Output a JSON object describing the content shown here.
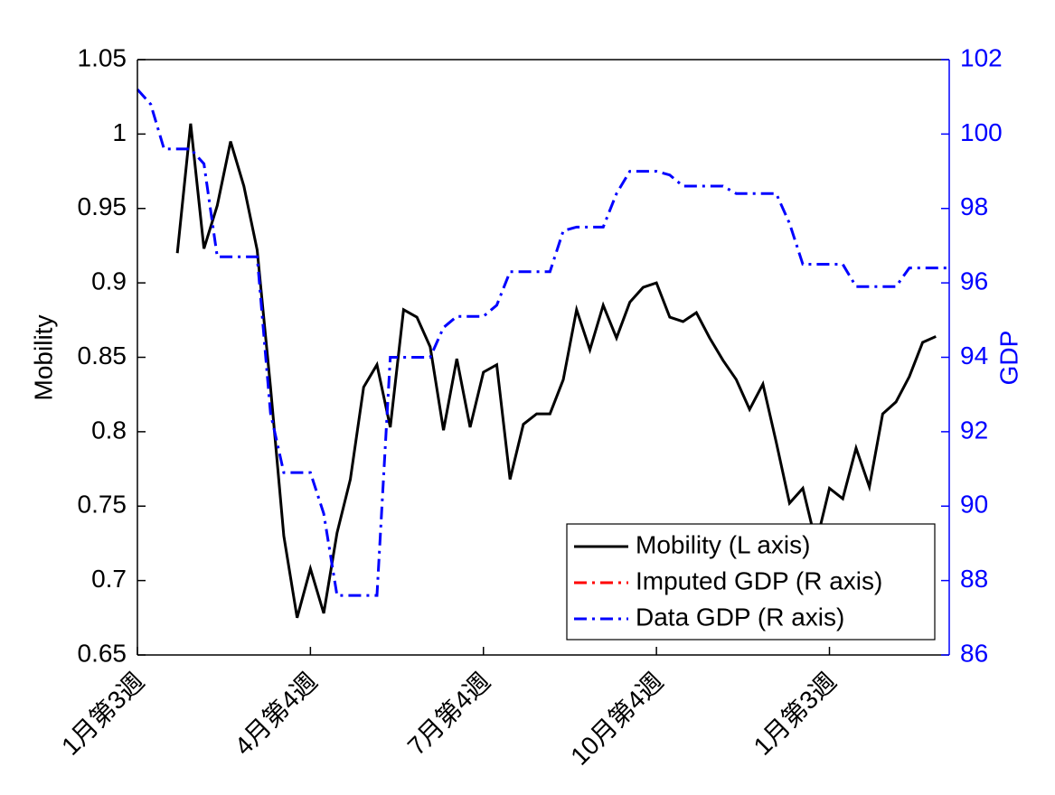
{
  "chart_data": {
    "type": "line",
    "ylabel": "Mobility",
    "y2label": "GDP",
    "x": [
      0,
      1,
      2,
      3,
      4,
      5,
      6,
      7,
      8,
      9,
      10,
      11,
      12,
      13,
      14,
      15,
      16,
      17,
      18,
      19,
      20,
      21,
      22,
      23,
      24,
      25,
      26,
      27,
      28,
      29,
      30,
      31,
      32,
      33,
      34,
      35,
      36,
      37,
      38,
      39,
      40,
      41,
      42,
      43,
      44,
      45,
      46,
      47,
      48,
      49,
      50,
      51,
      52,
      53,
      54,
      55,
      56,
      57,
      58,
      59,
      60,
      61
    ],
    "xlim": [
      0,
      61
    ],
    "xticks": [
      {
        "value": 0,
        "label": "1月第3週"
      },
      {
        "value": 13,
        "label": "4月第4週"
      },
      {
        "value": 26,
        "label": "7月第4週"
      },
      {
        "value": 39,
        "label": "10月第4週"
      },
      {
        "value": 52,
        "label": "1月第3週"
      }
    ],
    "ylim": [
      0.65,
      1.05
    ],
    "yticks": [
      0.65,
      0.7,
      0.75,
      0.8,
      0.85,
      0.9,
      0.95,
      1,
      1.05
    ],
    "y2lim": [
      86,
      102
    ],
    "y2ticks": [
      86,
      88,
      90,
      92,
      94,
      96,
      98,
      100,
      102
    ],
    "y2color": "#0000ff",
    "legend": "lower right",
    "series": [
      {
        "name": "Mobility (L axis)",
        "color": "#000000",
        "dash": "solid",
        "values": [
          null,
          null,
          null,
          0.92,
          1.007,
          0.923,
          0.952,
          0.995,
          0.965,
          0.922,
          0.83,
          0.73,
          0.675,
          0.708,
          0.678,
          0.732,
          0.768,
          0.83,
          0.845,
          0.803,
          0.882,
          0.877,
          0.857,
          0.801,
          0.849,
          0.803,
          0.84,
          0.845,
          0.768,
          0.805,
          0.812,
          0.812,
          0.835,
          0.882,
          0.855,
          0.885,
          0.863,
          0.887,
          0.897,
          0.9,
          0.877,
          0.874,
          0.88,
          0.863,
          0.848,
          0.835,
          0.815,
          0.832,
          0.793,
          0.752,
          0.762,
          0.725,
          0.762,
          0.755,
          0.789,
          0.763,
          0.812,
          0.82,
          0.837,
          0.86,
          0.864,
          null
        ]
      },
      {
        "name": "Imputed GDP (R axis)",
        "color": "#ff0000",
        "dash": "dashdot",
        "axis": "y2",
        "values": [
          null,
          null,
          null,
          null,
          null,
          null,
          null,
          null,
          null,
          null,
          null,
          null,
          null,
          null,
          null,
          null,
          null,
          null,
          null,
          null,
          null,
          null,
          null,
          null,
          null,
          null,
          null,
          null,
          null,
          null,
          null,
          null,
          null,
          null,
          null,
          null,
          null,
          null,
          null,
          null,
          null,
          null,
          null,
          null,
          null,
          null,
          null,
          null,
          null,
          null,
          null,
          null,
          null,
          null,
          null,
          null,
          null,
          null,
          null,
          null,
          null,
          null
        ]
      },
      {
        "name": "Data GDP (R axis)",
        "color": "#0000ff",
        "dash": "dashdot",
        "axis": "y2",
        "values": [
          101.2,
          100.8,
          99.6,
          99.6,
          99.6,
          99.2,
          96.7,
          96.7,
          96.7,
          96.7,
          92.5,
          90.9,
          90.9,
          90.9,
          89.8,
          87.6,
          87.6,
          87.6,
          87.6,
          94,
          94,
          94,
          94,
          94.8,
          95.1,
          95.1,
          95.1,
          95.4,
          96.3,
          96.3,
          96.3,
          96.3,
          97.4,
          97.5,
          97.5,
          97.5,
          98.4,
          99,
          99,
          99,
          98.9,
          98.6,
          98.6,
          98.6,
          98.6,
          98.4,
          98.4,
          98.4,
          98.4,
          97.6,
          96.5,
          96.5,
          96.5,
          96.5,
          95.9,
          95.9,
          95.9,
          95.9,
          96.4,
          96.4,
          96.4,
          96.4
        ]
      }
    ]
  }
}
